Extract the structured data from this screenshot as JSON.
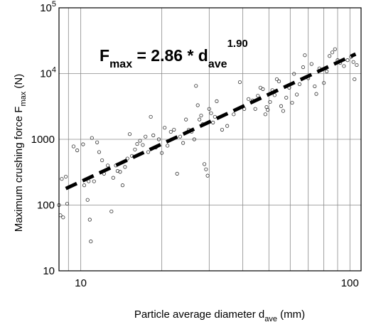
{
  "chart_data": {
    "type": "scatter",
    "xscale": "log",
    "yscale": "log",
    "xlim": [
      8.3,
      110
    ],
    "ylim": [
      10,
      100000
    ],
    "grid": true,
    "xlabel": {
      "main": "Particle average diameter  d",
      "sub": "ave",
      "unit": "  (mm)"
    },
    "ylabel": {
      "main": "Maximum crushing force  F",
      "sub": "max",
      "unit": " (N)"
    },
    "x_ticks": [
      {
        "value": 10,
        "label": "10"
      },
      {
        "value": 100,
        "label": "100"
      }
    ],
    "y_ticks": [
      {
        "value": 10,
        "base": "10",
        "exp": ""
      },
      {
        "value": 100,
        "base": "100",
        "exp": ""
      },
      {
        "value": 1000,
        "base": "1000",
        "exp": ""
      },
      {
        "value": 10000,
        "base": "10",
        "exp": "4"
      },
      {
        "value": 100000,
        "base": "10",
        "exp": "5"
      }
    ],
    "annotation": {
      "lhs": "F",
      "lhs_sub": "max",
      "mid": " = 2.86 * d",
      "rhs_sub": "ave",
      "rhs_sup": "1.90"
    },
    "fit": {
      "coefficient": 2.86,
      "exponent": 1.9,
      "x_range": [
        8.8,
        105
      ]
    },
    "series": [
      {
        "marker": "open-circle",
        "points": [
          [
            8.3,
            100
          ],
          [
            8.4,
            70
          ],
          [
            8.6,
            65
          ],
          [
            8.5,
            250
          ],
          [
            8.8,
            270
          ],
          [
            8.9,
            105
          ],
          [
            9.4,
            780
          ],
          [
            9.7,
            680
          ],
          [
            10.2,
            840
          ],
          [
            10.3,
            200
          ],
          [
            10.6,
            120
          ],
          [
            10.7,
            230
          ],
          [
            10.8,
            60
          ],
          [
            10.9,
            28
          ],
          [
            11.0,
            1050
          ],
          [
            11.2,
            230
          ],
          [
            11.5,
            900
          ],
          [
            11.7,
            640
          ],
          [
            12.0,
            480
          ],
          [
            12.2,
            300
          ],
          [
            12.6,
            400
          ],
          [
            13.0,
            80
          ],
          [
            13.2,
            260
          ],
          [
            13.5,
            400
          ],
          [
            13.7,
            330
          ],
          [
            14.0,
            320
          ],
          [
            14.3,
            200
          ],
          [
            14.6,
            380
          ],
          [
            14.9,
            510
          ],
          [
            15.2,
            1200
          ],
          [
            15.5,
            560
          ],
          [
            15.9,
            700
          ],
          [
            16.2,
            850
          ],
          [
            16.6,
            950
          ],
          [
            17.0,
            820
          ],
          [
            17.4,
            1100
          ],
          [
            17.8,
            640
          ],
          [
            18.2,
            2200
          ],
          [
            18.6,
            1150
          ],
          [
            19.0,
            750
          ],
          [
            19.5,
            1000
          ],
          [
            20.0,
            620
          ],
          [
            20.5,
            1500
          ],
          [
            21.0,
            800
          ],
          [
            21.6,
            1300
          ],
          [
            22.2,
            1400
          ],
          [
            22.8,
            300
          ],
          [
            23.4,
            1100
          ],
          [
            24.0,
            880
          ],
          [
            24.6,
            2000
          ],
          [
            25.2,
            1400
          ],
          [
            25.8,
            1300
          ],
          [
            26.4,
            1000
          ],
          [
            26.8,
            6500
          ],
          [
            27.2,
            3300
          ],
          [
            27.6,
            2000
          ],
          [
            28.0,
            2300
          ],
          [
            28.4,
            1700
          ],
          [
            28.8,
            420
          ],
          [
            29.2,
            350
          ],
          [
            29.6,
            280
          ],
          [
            30.0,
            2900
          ],
          [
            30.5,
            2500
          ],
          [
            31.0,
            1800
          ],
          [
            31.5,
            2200
          ],
          [
            32.0,
            3800
          ],
          [
            33.5,
            1400
          ],
          [
            35.0,
            1600
          ],
          [
            37.0,
            2400
          ],
          [
            39.0,
            7400
          ],
          [
            40.5,
            2900
          ],
          [
            42.0,
            4100
          ],
          [
            43.5,
            3900
          ],
          [
            44.5,
            2900
          ],
          [
            45.5,
            4600
          ],
          [
            46.5,
            6100
          ],
          [
            47.5,
            5800
          ],
          [
            48.5,
            2400
          ],
          [
            49.0,
            3100
          ],
          [
            49.5,
            2800
          ],
          [
            50.5,
            3700
          ],
          [
            51.5,
            5600
          ],
          [
            52.5,
            4700
          ],
          [
            53.5,
            8200
          ],
          [
            54.5,
            7600
          ],
          [
            55.5,
            3200
          ],
          [
            56.5,
            2700
          ],
          [
            58.0,
            4300
          ],
          [
            59.5,
            6100
          ],
          [
            61.0,
            3600
          ],
          [
            62.0,
            9900
          ],
          [
            63.5,
            4800
          ],
          [
            65.0,
            6900
          ],
          [
            67.0,
            12500
          ],
          [
            68.0,
            19000
          ],
          [
            70.0,
            8500
          ],
          [
            72.0,
            14000
          ],
          [
            74.0,
            6400
          ],
          [
            75.0,
            4900
          ],
          [
            77.0,
            12000
          ],
          [
            80.0,
            7200
          ],
          [
            82.0,
            10800
          ],
          [
            84.0,
            18500
          ],
          [
            86.0,
            21000
          ],
          [
            88.0,
            23500
          ],
          [
            90.0,
            16000
          ],
          [
            92.0,
            14500
          ],
          [
            95.0,
            13000
          ],
          [
            98.0,
            16000
          ],
          [
            101.0,
            18000
          ],
          [
            103.0,
            15000
          ],
          [
            104.0,
            8200
          ],
          [
            106.0,
            13500
          ]
        ]
      }
    ]
  }
}
